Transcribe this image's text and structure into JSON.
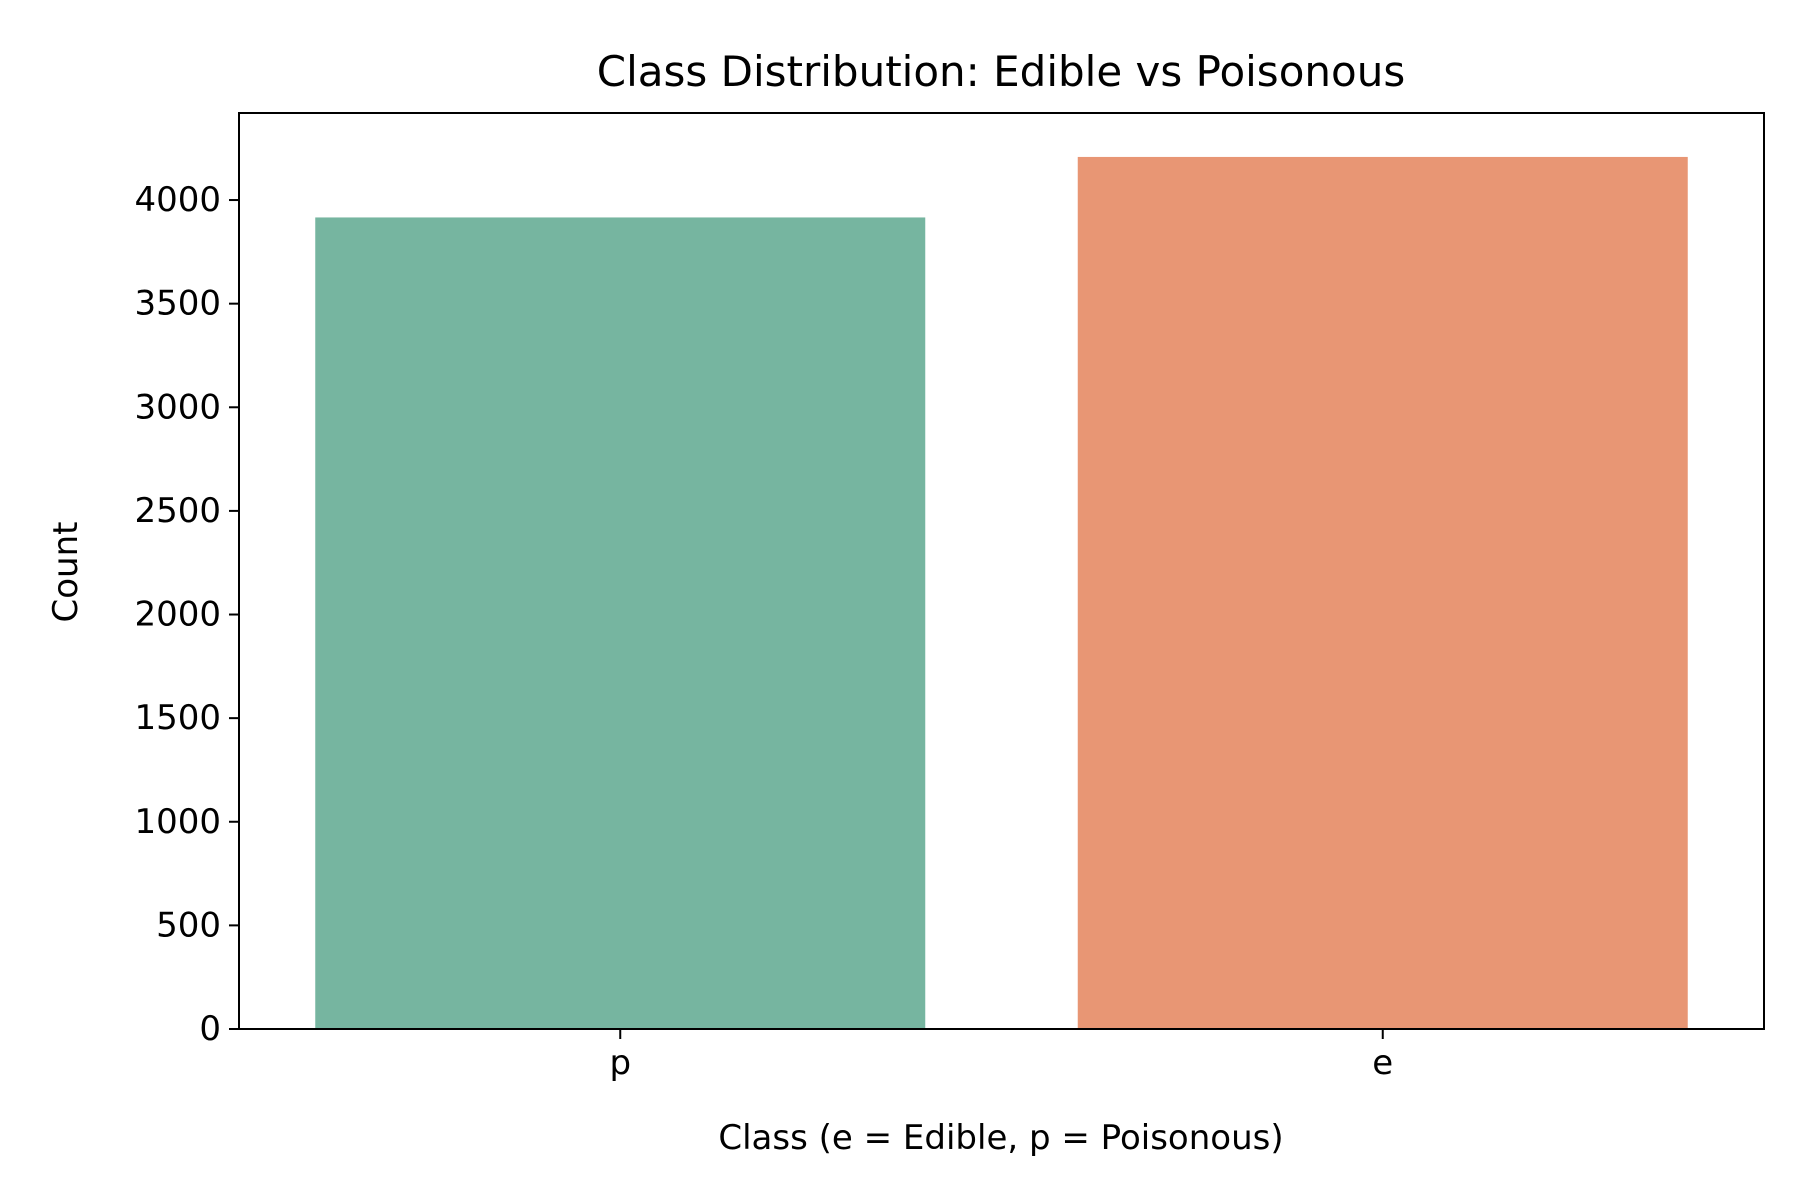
{
  "chart_data": {
    "type": "bar",
    "title": "Class Distribution: Edible vs Poisonous",
    "xlabel": "Class (e = Edible, p = Poisonous)",
    "ylabel": "Count",
    "categories": [
      "p",
      "e"
    ],
    "values": [
      3916,
      4208
    ],
    "ylim": [
      0,
      4420
    ],
    "yticks": [
      0,
      500,
      1000,
      1500,
      2000,
      2500,
      3000,
      3500,
      4000
    ],
    "bar_colors": [
      "#76b5a0",
      "#e89674"
    ],
    "grid": false,
    "legend": "none"
  }
}
